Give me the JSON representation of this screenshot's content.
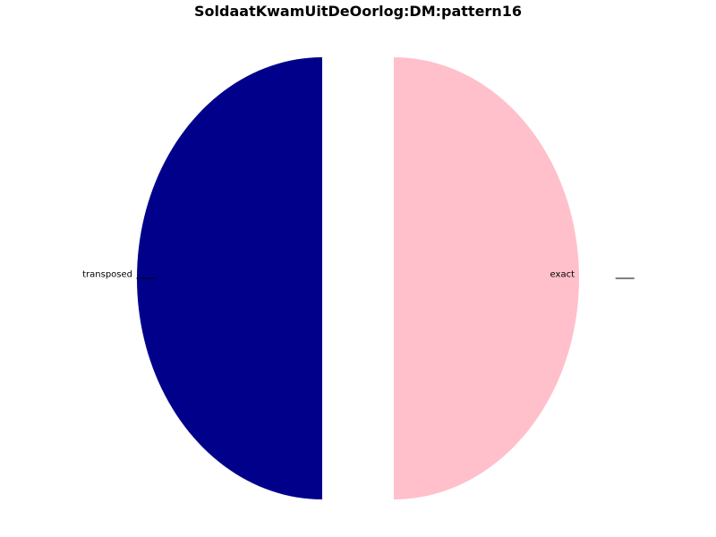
{
  "chart_data": {
    "type": "pie",
    "title": "SoldaatKwamUitDeOorlog:DM:pattern16",
    "slices": [
      {
        "label": "transposed",
        "value": 50,
        "color": "#00008B"
      },
      {
        "label": "",
        "value": 0,
        "color": "#FFFFFF"
      },
      {
        "label": "exact",
        "value": 50,
        "color": "#FFC0CB"
      }
    ]
  }
}
